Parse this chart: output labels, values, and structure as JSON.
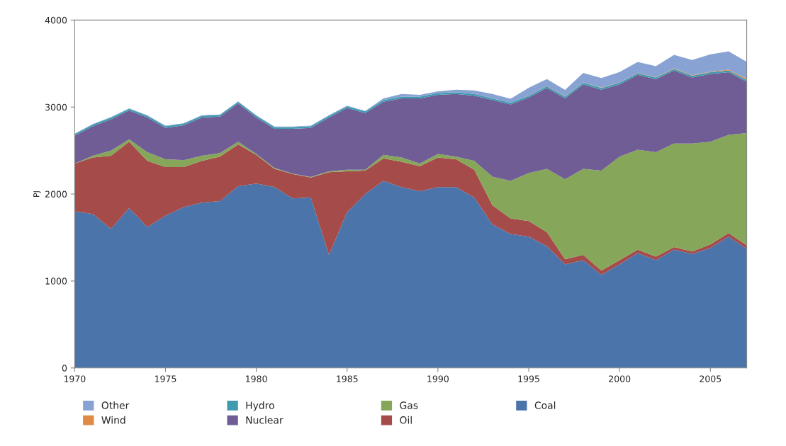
{
  "chart_data": {
    "type": "area",
    "stacked": true,
    "ylabel": "PJ",
    "x": [
      1970,
      1971,
      1972,
      1973,
      1974,
      1975,
      1976,
      1977,
      1978,
      1979,
      1980,
      1981,
      1982,
      1983,
      1984,
      1985,
      1986,
      1987,
      1988,
      1989,
      1990,
      1991,
      1992,
      1993,
      1994,
      1995,
      1996,
      1997,
      1998,
      1999,
      2000,
      2001,
      2002,
      2003,
      2004,
      2005,
      2006,
      2007
    ],
    "xlim": [
      1970,
      2007
    ],
    "xticks": [
      1970,
      1975,
      1980,
      1985,
      1990,
      1995,
      2000,
      2005
    ],
    "ylim": [
      0,
      4000
    ],
    "yticks": [
      0,
      1000,
      2000,
      3000,
      4000
    ],
    "grid": false,
    "legend": "bottom",
    "series": [
      {
        "name": "Coal",
        "color": "#4a74aa",
        "values": [
          1800,
          1770,
          1600,
          1840,
          1620,
          1750,
          1850,
          1900,
          1920,
          2090,
          2120,
          2080,
          1950,
          1960,
          1300,
          1790,
          2000,
          2150,
          2080,
          2030,
          2080,
          2080,
          1960,
          1650,
          1540,
          1510,
          1400,
          1190,
          1240,
          1070,
          1190,
          1320,
          1240,
          1360,
          1310,
          1380,
          1510,
          1370
        ]
      },
      {
        "name": "Oil",
        "color": "#a54b49",
        "values": [
          550,
          650,
          840,
          760,
          760,
          560,
          460,
          480,
          510,
          480,
          330,
          210,
          280,
          230,
          950,
          470,
          270,
          260,
          290,
          290,
          340,
          320,
          320,
          220,
          180,
          180,
          160,
          60,
          60,
          50,
          50,
          40,
          40,
          30,
          30,
          40,
          40,
          40
        ]
      },
      {
        "name": "Gas",
        "color": "#86a75a",
        "values": [
          0,
          20,
          60,
          30,
          100,
          90,
          80,
          60,
          40,
          30,
          10,
          10,
          5,
          5,
          10,
          20,
          10,
          40,
          50,
          30,
          40,
          30,
          100,
          330,
          430,
          550,
          730,
          920,
          990,
          1150,
          1190,
          1150,
          1200,
          1190,
          1240,
          1180,
          1130,
          1290
        ]
      },
      {
        "name": "Nuclear",
        "color": "#705d96",
        "values": [
          320,
          340,
          360,
          330,
          400,
          360,
          400,
          440,
          420,
          440,
          420,
          450,
          515,
          565,
          620,
          710,
          650,
          610,
          680,
          750,
          680,
          720,
          750,
          880,
          880,
          870,
          930,
          930,
          970,
          930,
          830,
          860,
          840,
          840,
          760,
          780,
          720,
          590
        ]
      },
      {
        "name": "Hydro",
        "color": "#3f9bb0",
        "values": [
          20,
          20,
          20,
          20,
          20,
          20,
          20,
          20,
          20,
          20,
          20,
          20,
          20,
          20,
          20,
          20,
          20,
          20,
          20,
          20,
          20,
          20,
          20,
          20,
          20,
          20,
          20,
          20,
          20,
          20,
          20,
          20,
          20,
          20,
          20,
          20,
          20,
          20
        ]
      },
      {
        "name": "Wind",
        "color": "#e08a45",
        "values": [
          0,
          0,
          0,
          0,
          0,
          0,
          0,
          0,
          0,
          0,
          0,
          0,
          0,
          0,
          0,
          0,
          0,
          0,
          0,
          0,
          0,
          0,
          0,
          0,
          0,
          1,
          2,
          3,
          3,
          3,
          3,
          4,
          4,
          5,
          6,
          7,
          10,
          15
        ]
      },
      {
        "name": "Other",
        "color": "#88a3d3",
        "values": [
          5,
          5,
          5,
          5,
          5,
          5,
          5,
          5,
          5,
          5,
          5,
          5,
          5,
          5,
          5,
          5,
          5,
          20,
          30,
          20,
          20,
          30,
          40,
          50,
          45,
          90,
          80,
          75,
          110,
          110,
          120,
          125,
          125,
          155,
          175,
          200,
          210,
          195
        ]
      }
    ]
  }
}
